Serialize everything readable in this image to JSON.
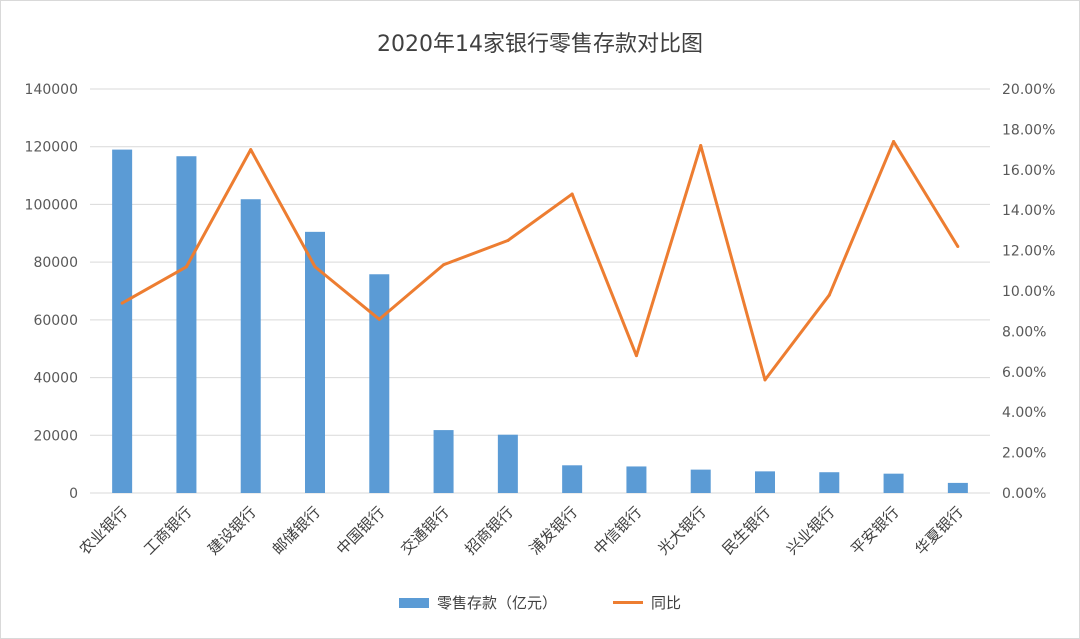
{
  "colors": {
    "bar": "#5b9bd5",
    "line": "#ed7d31",
    "grid": "#d9d9d9"
  },
  "chart_data": {
    "type": "bar",
    "title": "2020年14家银行零售存款对比图",
    "categories": [
      "农业银行",
      "工商银行",
      "建设银行",
      "邮储银行",
      "中国银行",
      "交通银行",
      "招商银行",
      "浦发银行",
      "中信银行",
      "光大银行",
      "民生银行",
      "兴业银行",
      "平安银行",
      "华夏银行"
    ],
    "series": [
      {
        "name": "零售存款（亿元）",
        "type": "bar",
        "axis": "left",
        "values": [
          119000,
          116700,
          101800,
          90500,
          75800,
          21800,
          20200,
          9600,
          9200,
          8100,
          7500,
          7200,
          6700,
          3500
        ]
      },
      {
        "name": "同比",
        "type": "line",
        "axis": "right",
        "values": [
          9.4,
          11.2,
          17.0,
          11.2,
          8.6,
          11.3,
          12.5,
          14.8,
          6.8,
          17.2,
          5.6,
          9.8,
          17.4,
          12.2
        ]
      }
    ],
    "ylim_left": [
      0,
      140000
    ],
    "yticks_left": [
      "0",
      "20000",
      "40000",
      "60000",
      "80000",
      "100000",
      "120000",
      "140000"
    ],
    "ylim_right": [
      0,
      20
    ],
    "yticks_right": [
      "0.00%",
      "2.00%",
      "4.00%",
      "6.00%",
      "8.00%",
      "10.00%",
      "12.00%",
      "14.00%",
      "16.00%",
      "18.00%",
      "20.00%"
    ],
    "grid": true,
    "legend_position": "bottom"
  }
}
